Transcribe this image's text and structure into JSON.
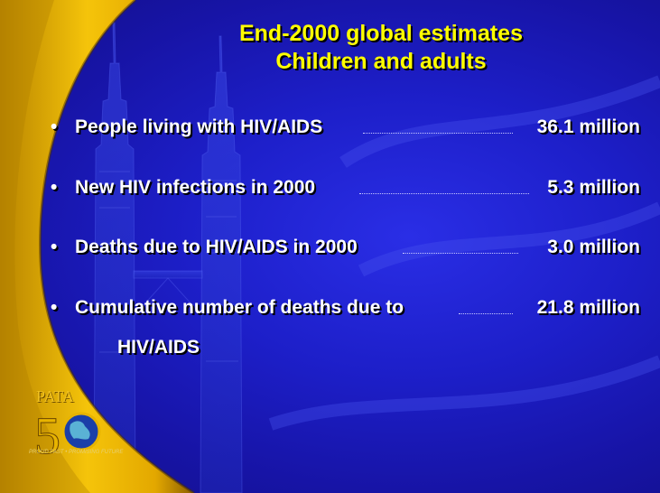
{
  "title": {
    "line1": "End-2000 global estimates",
    "line2": "Children and adults"
  },
  "bullets": [
    {
      "label": "People living with HIV/AIDS",
      "value": "36.1 million"
    },
    {
      "label": "New HIV infections in 2000",
      "value": "5.3 million"
    },
    {
      "label": "Deaths due to HIV/AIDS in 2000",
      "value": "3.0 million"
    },
    {
      "label": "Cumulative number of deaths due to",
      "value": "21.8 million"
    }
  ],
  "bullet_continuation": "HIV/AIDS",
  "logo": {
    "text": "PATA",
    "number": "50",
    "tagline": "PROUD PAST • PROMISING FUTURE"
  },
  "colors": {
    "title": "#ffff00",
    "text": "#ffffff",
    "background": "#1d1fc9",
    "accent_swoosh": "#f2b705"
  }
}
